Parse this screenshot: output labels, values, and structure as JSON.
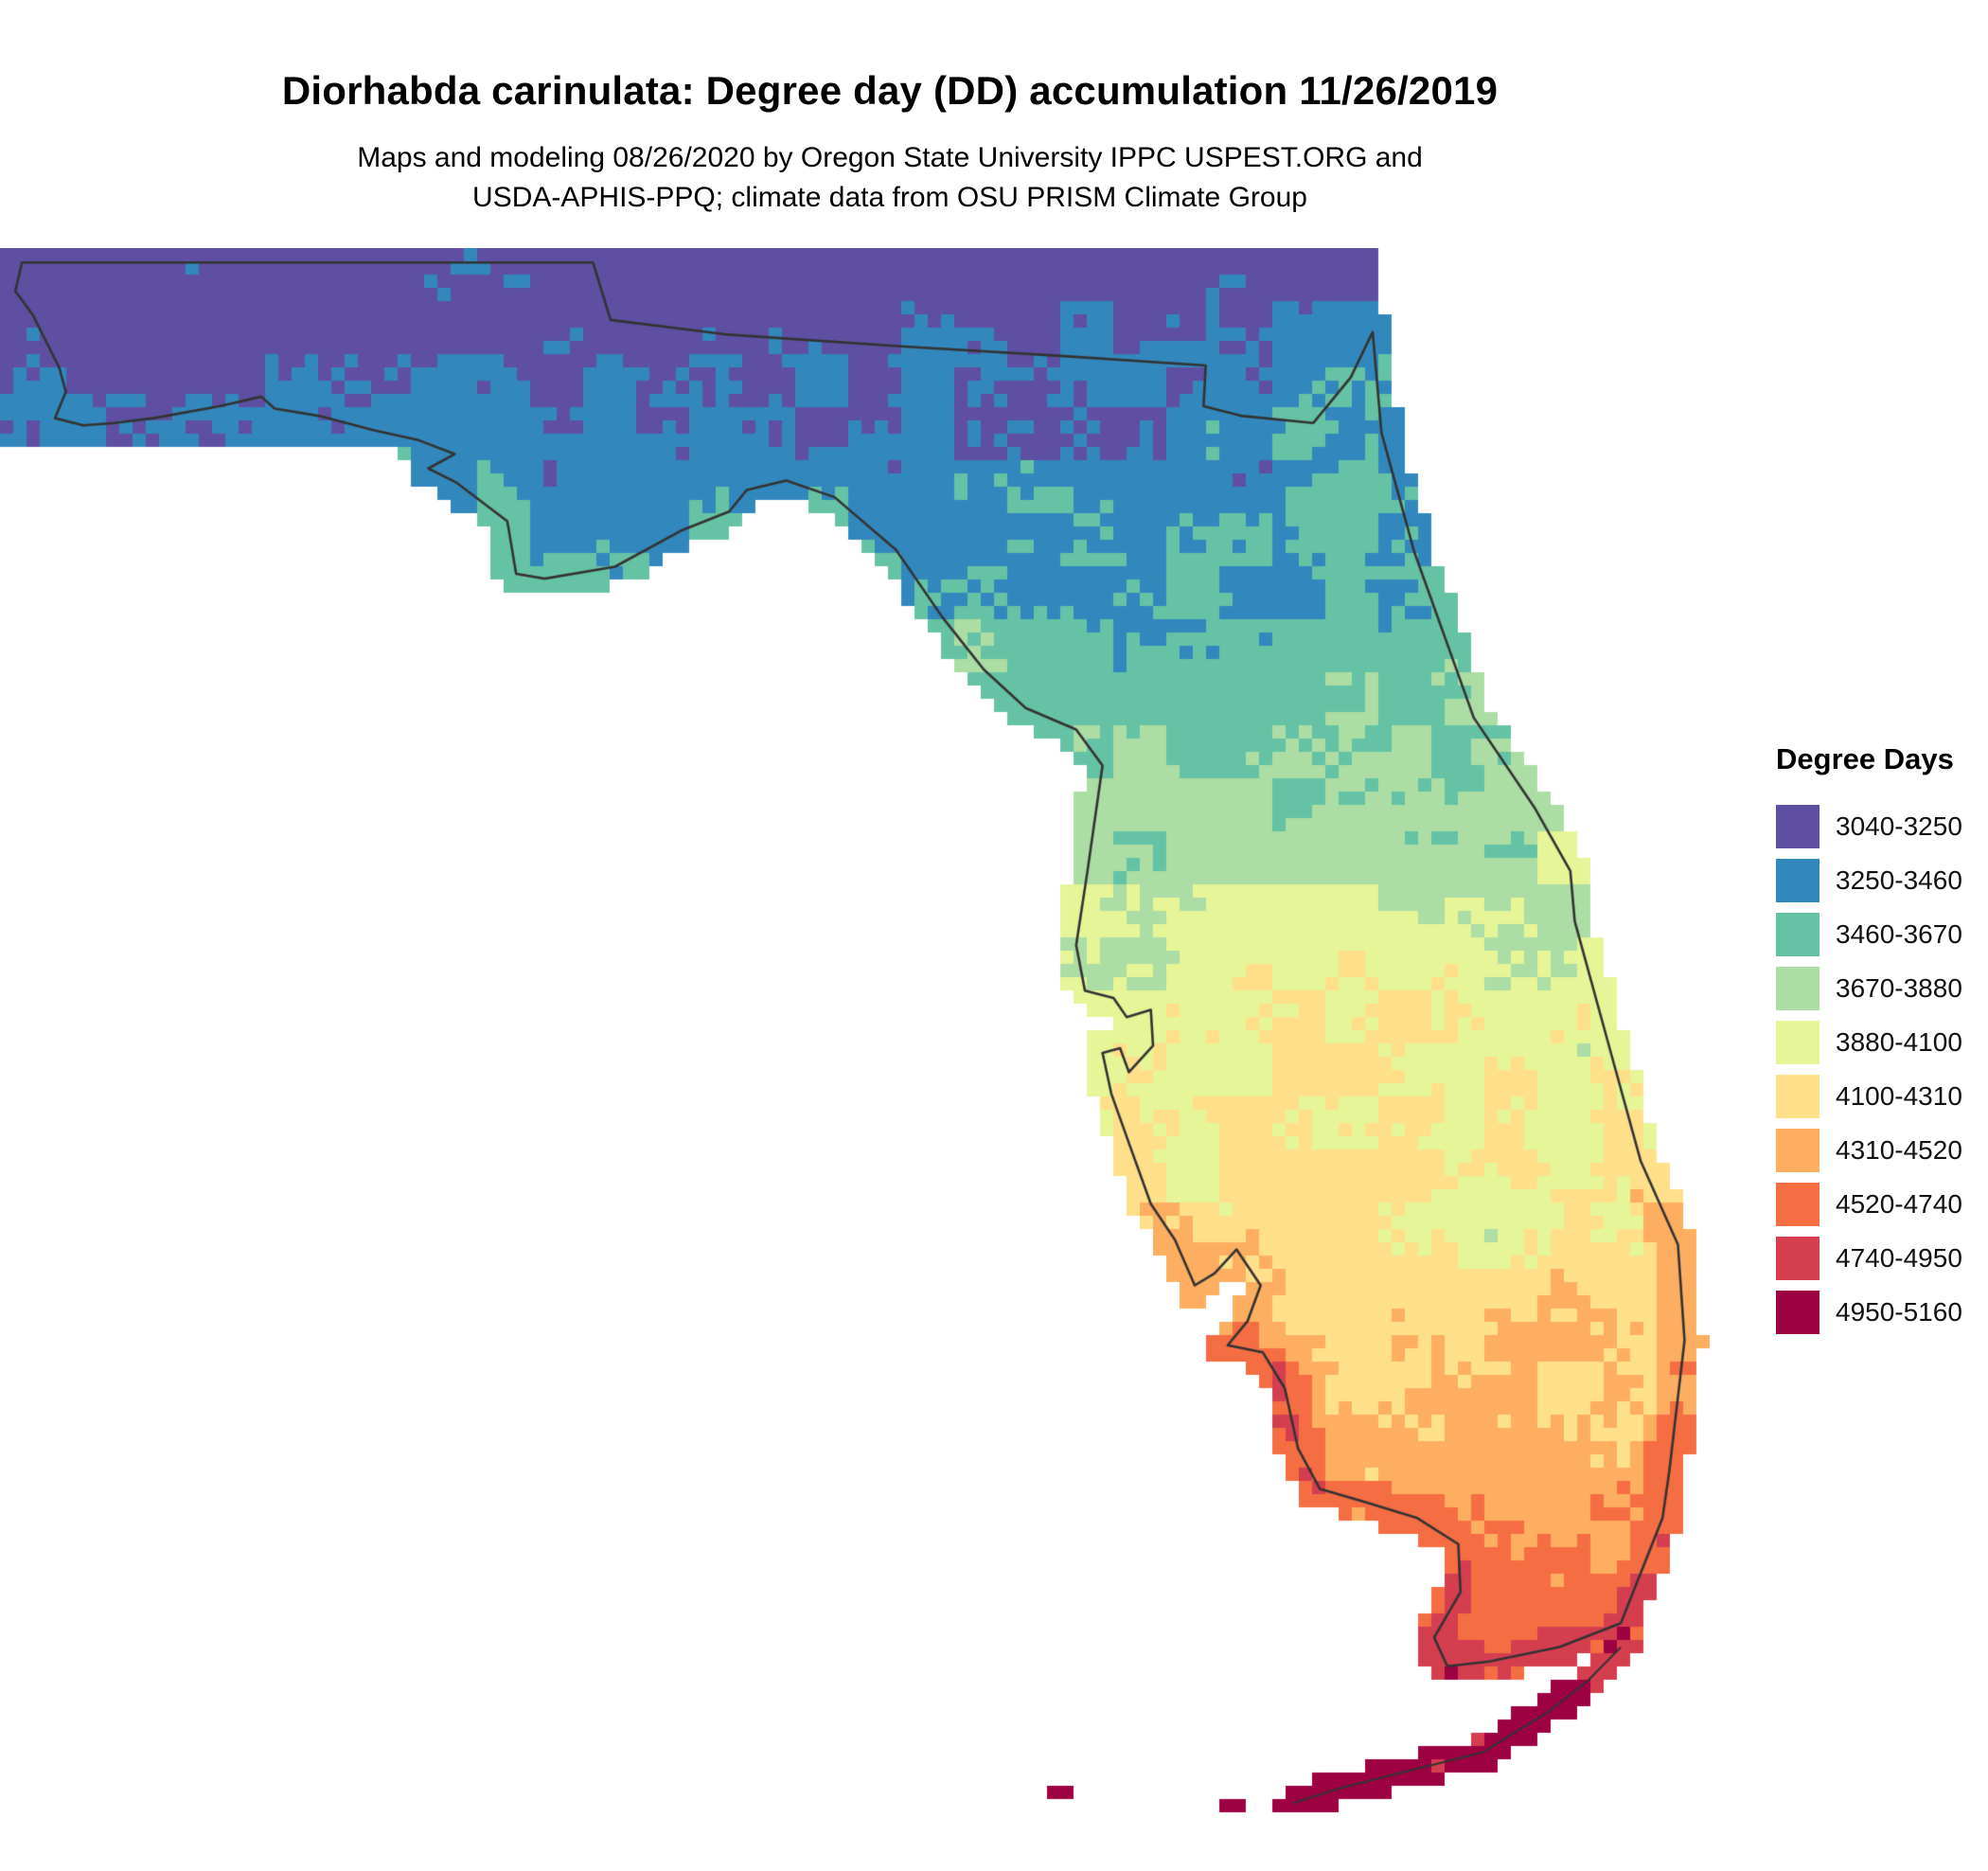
{
  "header": {
    "title": "Diorhabda carinulata: Degree day (DD) accumulation 11/26/2019",
    "subtitle_line1": "Maps and modeling 08/26/2020 by Oregon State University IPPC USPEST.ORG and",
    "subtitle_line2": "USDA-APHIS-PPQ; climate data from OSU PRISM Climate Group"
  },
  "legend": {
    "title": "Degree Days",
    "entries": [
      {
        "label": "3040-3250",
        "min": 3040,
        "max": 3250,
        "color": "#5e4fa2"
      },
      {
        "label": "3250-3460",
        "min": 3250,
        "max": 3460,
        "color": "#3288bd"
      },
      {
        "label": "3460-3670",
        "min": 3460,
        "max": 3670,
        "color": "#66c2a5"
      },
      {
        "label": "3670-3880",
        "min": 3670,
        "max": 3880,
        "color": "#abdda4"
      },
      {
        "label": "3880-4100",
        "min": 3880,
        "max": 4100,
        "color": "#e6f598"
      },
      {
        "label": "4100-4310",
        "min": 4100,
        "max": 4310,
        "color": "#fee08b"
      },
      {
        "label": "4310-4520",
        "min": 4310,
        "max": 4520,
        "color": "#fdae61"
      },
      {
        "label": "4520-4740",
        "min": 4520,
        "max": 4740,
        "color": "#f46d43"
      },
      {
        "label": "4740-4950",
        "min": 4740,
        "max": 4950,
        "color": "#d53e4f"
      },
      {
        "label": "4950-5160",
        "min": 4950,
        "max": 5160,
        "color": "#9e0142"
      }
    ]
  },
  "chart_data": {
    "type": "heatmap",
    "title": "Diorhabda carinulata: Degree day (DD) accumulation 11/26/2019",
    "legend_title": "Degree Days",
    "classes": [
      "3040-3250",
      "3250-3460",
      "3460-3670",
      "3670-3880",
      "3880-4100",
      "4100-4310",
      "4310-4520",
      "4520-4740",
      "4740-4950",
      "4950-5160"
    ],
    "colors": [
      "#5e4fa2",
      "#3288bd",
      "#66c2a5",
      "#abdda4",
      "#e6f598",
      "#fee08b",
      "#fdae61",
      "#f46d43",
      "#d53e4f",
      "#9e0142"
    ],
    "value_range": [
      3040,
      5160
    ],
    "outline_color": "#333333"
  }
}
